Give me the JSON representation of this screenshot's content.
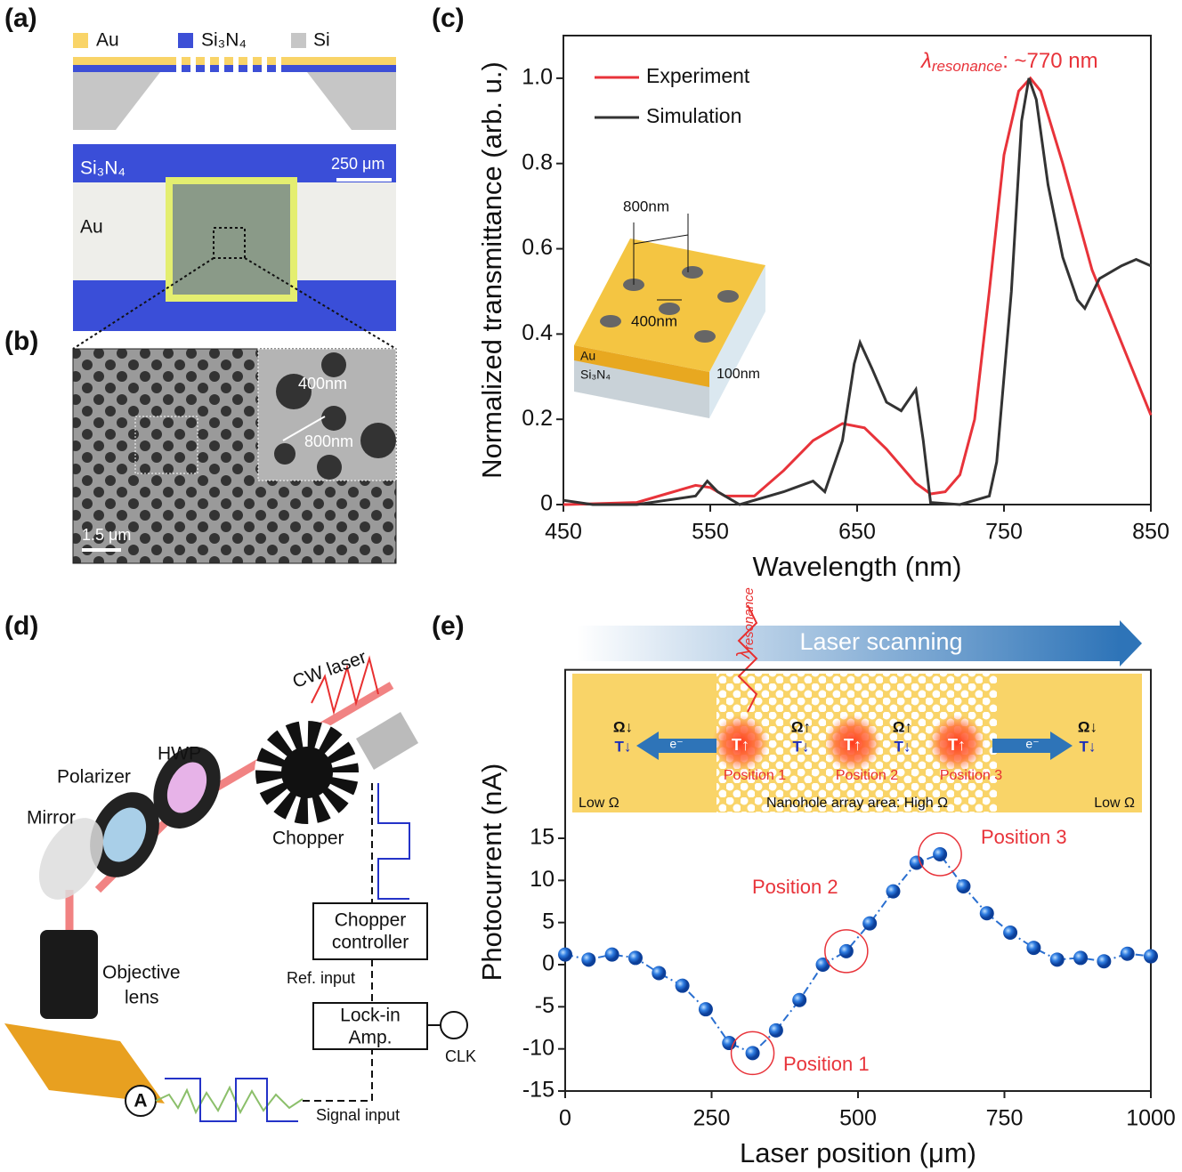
{
  "panel_labels": [
    "(a)",
    "(b)",
    "(c)",
    "(d)",
    "(e)"
  ],
  "panel_a": {
    "legend": [
      "Au",
      "Si₃N₄",
      "Si"
    ],
    "image_labels": [
      "Si₃N₄",
      "Au"
    ],
    "scale_bar": "250 μm"
  },
  "panel_b": {
    "inset_labels": [
      "400nm",
      "800nm"
    ],
    "scale_bar": "1.5 μm"
  },
  "panel_d": {
    "components": [
      "CW laser",
      "HWP",
      "Polarizer",
      "Mirror",
      "Chopper",
      "Objective",
      "lens",
      "Chopper",
      "controller",
      "Ref. input",
      "Lock-in",
      "Amp.",
      "CLK",
      "A",
      "Signal input"
    ]
  },
  "panel_e_inset": {
    "arrow_label": "Laser scanning",
    "wavelength_symbol": "λ",
    "wavelength_subscript": "resonance",
    "sides": [
      {
        "omega": "Ω↓",
        "t": "T↓"
      },
      {
        "omega": "Ω↑",
        "t": "T↓"
      },
      {
        "omega": "Ω↑",
        "t": "T↓"
      },
      {
        "omega": "Ω↓",
        "t": "T↓"
      }
    ],
    "spots": [
      {
        "t": "T↑",
        "label": "Position 1"
      },
      {
        "t": "T↑",
        "label": "Position 2"
      },
      {
        "t": "T↑",
        "label": "Position 3"
      }
    ],
    "electrons": [
      "e⁻",
      "e⁻"
    ],
    "regions": [
      "Low Ω",
      "Nanohole array area: High Ω",
      "Low Ω"
    ]
  },
  "chart_data": [
    {
      "type": "line",
      "xlabel": "Wavelength (nm)",
      "ylabel": "Normalized transmittance (arb. u.)",
      "xlim": [
        450,
        850
      ],
      "xticks": [
        450,
        550,
        650,
        750,
        850
      ],
      "ylim": [
        0,
        1.1
      ],
      "yticks": [
        0,
        0.2,
        0.4,
        0.6,
        0.8,
        {
          "value": 1.0,
          "label": "1.0"
        }
      ],
      "legend": "upper left",
      "annotation": {
        "symbol": "λ",
        "subscript": "resonance",
        "text": ": ~770 nm"
      },
      "inset_labels": {
        "pitch": "800nm",
        "diameter": "400nm",
        "metal": "Au",
        "substrate": "Si₃N₄",
        "thickness": "100nm"
      },
      "series": [
        {
          "name": "Experiment",
          "color": "#e8333a",
          "x": [
            450,
            500,
            520,
            540,
            550,
            560,
            580,
            600,
            620,
            640,
            655,
            670,
            690,
            700,
            710,
            720,
            730,
            740,
            750,
            760,
            768,
            775,
            790,
            810,
            830,
            850
          ],
          "values": [
            0,
            0.005,
            0.025,
            0.045,
            0.04,
            0.02,
            0.02,
            0.08,
            0.15,
            0.19,
            0.18,
            0.13,
            0.05,
            0.025,
            0.03,
            0.07,
            0.2,
            0.5,
            0.82,
            0.97,
            1.0,
            0.97,
            0.8,
            0.55,
            0.38,
            0.21
          ]
        },
        {
          "name": "Simulation",
          "color": "#333333",
          "x": [
            450,
            470,
            500,
            520,
            540,
            548,
            555,
            570,
            600,
            620,
            628,
            640,
            648,
            652,
            660,
            670,
            680,
            690,
            695,
            700,
            720,
            740,
            745,
            755,
            762,
            767,
            772,
            780,
            790,
            800,
            805,
            815,
            830,
            840,
            850
          ],
          "values": [
            0.01,
            0,
            0,
            0.01,
            0.02,
            0.055,
            0.03,
            0,
            0.03,
            0.055,
            0.03,
            0.15,
            0.33,
            0.38,
            0.32,
            0.24,
            0.22,
            0.27,
            0.15,
            0.005,
            0,
            0.02,
            0.1,
            0.5,
            0.9,
            1.0,
            0.95,
            0.75,
            0.58,
            0.48,
            0.46,
            0.53,
            0.56,
            0.575,
            0.56
          ]
        }
      ]
    },
    {
      "type": "line",
      "xlabel": "Laser position (μm)",
      "ylabel": "Photocurrent (nA)",
      "xlim": [
        0,
        1000
      ],
      "xticks": [
        0,
        250,
        500,
        750,
        1000
      ],
      "ylim": [
        -15,
        35
      ],
      "yticks": [
        -15,
        -10,
        -5,
        0,
        5,
        10,
        15
      ],
      "color": "#2a6fd0",
      "markers": true,
      "line_style": "dashdot",
      "annotations": [
        "Position 1",
        "Position 2",
        "Position 3"
      ],
      "x": [
        0,
        40,
        80,
        120,
        160,
        200,
        240,
        280,
        320,
        360,
        400,
        440,
        480,
        520,
        560,
        600,
        640,
        680,
        720,
        760,
        800,
        840,
        880,
        920,
        960,
        1000
      ],
      "values": [
        1.2,
        0.6,
        1.2,
        0.8,
        -1,
        -2.5,
        -5.3,
        -9.3,
        -10.5,
        -7.8,
        -4.2,
        0,
        1.6,
        4.9,
        8.7,
        12.1,
        13.1,
        9.3,
        6.1,
        3.8,
        2,
        0.6,
        0.8,
        0.4,
        1.3,
        1.0
      ]
    }
  ]
}
